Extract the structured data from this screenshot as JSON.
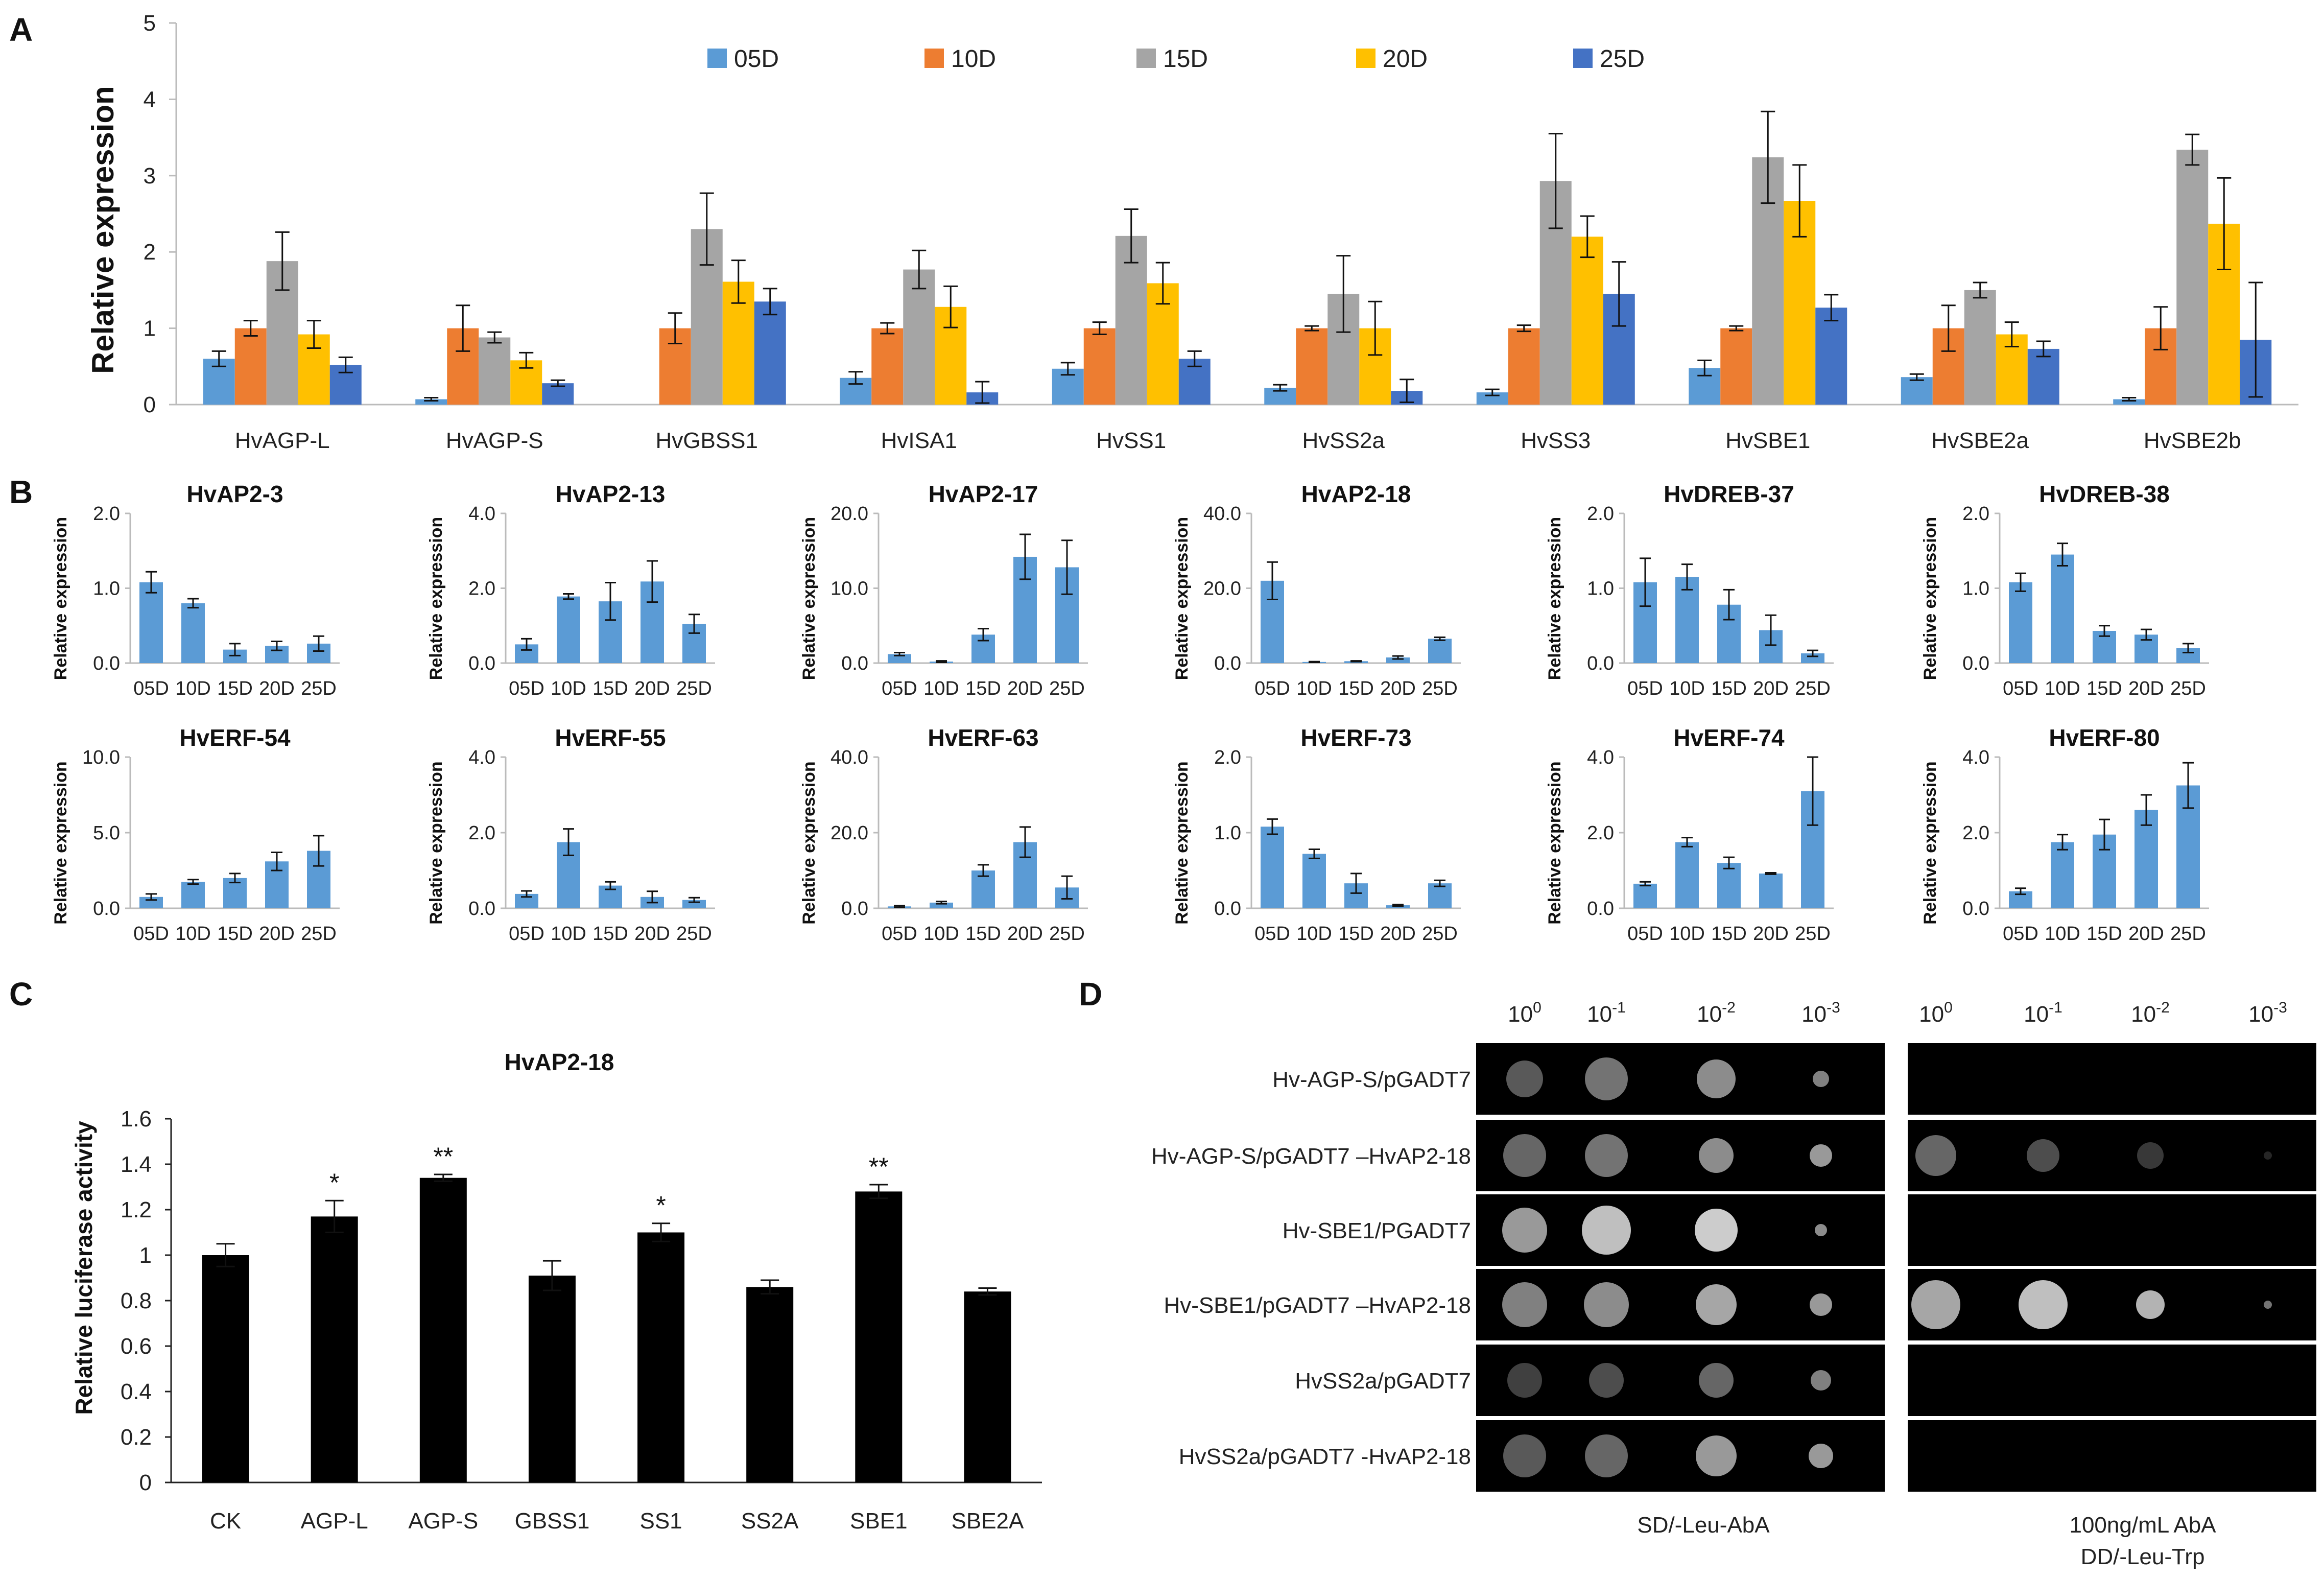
{
  "panel_letters": {
    "a": "A",
    "b": "B",
    "c": "C",
    "d": "D"
  },
  "chart_data": [
    {
      "id": "A",
      "type": "bar",
      "title": "",
      "xlabel": "",
      "ylabel": "Relative expression",
      "ylim": [
        0,
        5
      ],
      "yticks": [
        "0",
        "1",
        "2",
        "3",
        "4",
        "5"
      ],
      "legend_position": "top",
      "categories": [
        "HvAGP-L",
        "HvAGP-S",
        "HvGBSS1",
        "HvISA1",
        "HvSS1",
        "HvSS2a",
        "HvSS3",
        "HvSBE1",
        "HvSBE2a",
        "HvSBE2b"
      ],
      "series": [
        {
          "name": "05D",
          "color": "#5b9bd5",
          "values": [
            0.6,
            0.07,
            null,
            0.35,
            0.47,
            0.22,
            0.16,
            0.48,
            0.36,
            0.07
          ],
          "errors": [
            0.1,
            0.02,
            null,
            0.08,
            0.08,
            0.04,
            0.04,
            0.1,
            0.04,
            0.02
          ]
        },
        {
          "name": "10D",
          "color": "#ed7d31",
          "values": [
            1.0,
            1.0,
            1.0,
            1.0,
            1.0,
            1.0,
            1.0,
            1.0,
            1.0,
            1.0
          ],
          "errors": [
            0.1,
            0.3,
            0.2,
            0.07,
            0.08,
            0.03,
            0.04,
            0.03,
            0.3,
            0.28
          ]
        },
        {
          "name": "15D",
          "color": "#a5a5a5",
          "values": [
            1.88,
            0.88,
            2.3,
            1.77,
            2.21,
            1.45,
            2.93,
            3.24,
            1.5,
            3.34
          ],
          "errors": [
            0.38,
            0.07,
            0.47,
            0.25,
            0.35,
            0.5,
            0.62,
            0.6,
            0.1,
            0.2
          ]
        },
        {
          "name": "20D",
          "color": "#ffc000",
          "values": [
            0.92,
            0.58,
            1.61,
            1.28,
            1.59,
            1.0,
            2.2,
            2.67,
            0.92,
            2.37
          ],
          "errors": [
            0.18,
            0.1,
            0.28,
            0.27,
            0.27,
            0.35,
            0.27,
            0.47,
            0.16,
            0.6
          ]
        },
        {
          "name": "25D",
          "color": "#4472c4",
          "values": [
            0.52,
            0.28,
            1.35,
            0.16,
            0.6,
            0.18,
            1.45,
            1.27,
            0.73,
            0.85
          ],
          "errors": [
            0.1,
            0.04,
            0.17,
            0.14,
            0.1,
            0.15,
            0.42,
            0.17,
            0.1,
            0.75
          ]
        }
      ]
    },
    {
      "id": "B",
      "type": "bar",
      "ylabel": "Relative expression",
      "bar_color": "#5b9bd5",
      "categories": [
        "05D",
        "10D",
        "15D",
        "20D",
        "25D"
      ],
      "subplots": [
        {
          "title": "HvAP2-3",
          "ylim": [
            0,
            2
          ],
          "yticks": [
            "0.0",
            "1.0",
            "2.0"
          ],
          "values": [
            1.08,
            0.8,
            0.18,
            0.23,
            0.26
          ],
          "errors": [
            0.14,
            0.06,
            0.08,
            0.06,
            0.1
          ]
        },
        {
          "title": "HvAP2-13",
          "ylim": [
            0,
            4
          ],
          "yticks": [
            "0.0",
            "2.0",
            "4.0"
          ],
          "values": [
            0.5,
            1.78,
            1.65,
            2.18,
            1.05
          ],
          "errors": [
            0.15,
            0.07,
            0.5,
            0.55,
            0.25
          ]
        },
        {
          "title": "HvAP2-17",
          "ylim": [
            0,
            20
          ],
          "yticks": [
            "0.0",
            "10.0",
            "20.0"
          ],
          "values": [
            1.2,
            0.2,
            3.8,
            14.2,
            12.8
          ],
          "errors": [
            0.2,
            0.1,
            0.8,
            3.0,
            3.6
          ]
        },
        {
          "title": "HvAP2-18",
          "ylim": [
            0,
            40
          ],
          "yticks": [
            "0.0",
            "20.0",
            "40.0"
          ],
          "values": [
            22.0,
            0.3,
            0.5,
            1.5,
            6.5
          ],
          "errors": [
            5.0,
            0.1,
            0.1,
            0.4,
            0.4
          ]
        },
        {
          "title": "HvDREB-37",
          "ylim": [
            0,
            2
          ],
          "yticks": [
            "0.0",
            "1.0",
            "2.0"
          ],
          "values": [
            1.08,
            1.15,
            0.78,
            0.44,
            0.13
          ],
          "errors": [
            0.32,
            0.17,
            0.2,
            0.2,
            0.04
          ]
        },
        {
          "title": "HvDREB-38",
          "ylim": [
            0,
            2
          ],
          "yticks": [
            "0.0",
            "1.0",
            "2.0"
          ],
          "values": [
            1.08,
            1.45,
            0.43,
            0.38,
            0.2
          ],
          "errors": [
            0.12,
            0.15,
            0.07,
            0.07,
            0.06
          ]
        },
        {
          "title": "HvERF-54",
          "ylim": [
            0,
            10
          ],
          "yticks": [
            "0.0",
            "5.0",
            "10.0"
          ],
          "values": [
            0.75,
            1.75,
            2.0,
            3.1,
            3.8
          ],
          "errors": [
            0.2,
            0.15,
            0.3,
            0.6,
            1.0
          ]
        },
        {
          "title": "HvERF-55",
          "ylim": [
            0,
            4
          ],
          "yticks": [
            "0.0",
            "2.0",
            "4.0"
          ],
          "values": [
            0.38,
            1.75,
            0.6,
            0.3,
            0.22
          ],
          "errors": [
            0.08,
            0.35,
            0.1,
            0.15,
            0.06
          ]
        },
        {
          "title": "HvERF-63",
          "ylim": [
            0,
            40
          ],
          "yticks": [
            "0.0",
            "20.0",
            "40.0"
          ],
          "values": [
            0.5,
            1.5,
            10.0,
            17.5,
            5.5
          ],
          "errors": [
            0.2,
            0.3,
            1.5,
            4.0,
            3.0
          ]
        },
        {
          "title": "HvERF-73",
          "ylim": [
            0,
            2
          ],
          "yticks": [
            "0.0",
            "1.0",
            "2.0"
          ],
          "values": [
            1.08,
            0.72,
            0.33,
            0.04,
            0.33
          ],
          "errors": [
            0.1,
            0.06,
            0.13,
            0.01,
            0.04
          ]
        },
        {
          "title": "HvERF-74",
          "ylim": [
            0,
            4
          ],
          "yticks": [
            "0.0",
            "2.0",
            "4.0"
          ],
          "values": [
            0.65,
            1.75,
            1.2,
            0.92,
            3.1
          ],
          "errors": [
            0.05,
            0.12,
            0.15,
            0.02,
            0.9
          ]
        },
        {
          "title": "HvERF-80",
          "ylim": [
            0,
            4
          ],
          "yticks": [
            "0.0",
            "2.0",
            "4.0"
          ],
          "values": [
            0.45,
            1.75,
            1.95,
            2.6,
            3.25
          ],
          "errors": [
            0.08,
            0.2,
            0.4,
            0.4,
            0.6
          ]
        }
      ]
    },
    {
      "id": "C",
      "type": "bar",
      "title": "HvAP2-18",
      "xlabel": "",
      "ylabel": "Relative luciferase activity",
      "ylim": [
        0,
        1.6
      ],
      "yticks": [
        "0",
        "0.2",
        "0.4",
        "0.6",
        "0.8",
        "1",
        "1.2",
        "1.4",
        "1.6"
      ],
      "bar_color": "#000000",
      "categories": [
        "CK",
        "AGP-L",
        "AGP-S",
        "GBSS1",
        "SS1",
        "SS2A",
        "SBE1",
        "SBE2A"
      ],
      "values": [
        1.0,
        1.17,
        1.34,
        0.91,
        1.1,
        0.86,
        1.28,
        0.84
      ],
      "errors": [
        0.05,
        0.07,
        0.015,
        0.065,
        0.04,
        0.03,
        0.03,
        0.015
      ],
      "significance": [
        "",
        "*",
        "**",
        "",
        "*",
        "",
        "**",
        ""
      ]
    }
  ],
  "panel_d": {
    "dilutions_left": [
      {
        "base": "10",
        "exp": "0"
      },
      {
        "base": "10",
        "exp": "-1"
      },
      {
        "base": "10",
        "exp": "-2"
      },
      {
        "base": "10",
        "exp": "-3"
      }
    ],
    "dilutions_right": [
      {
        "base": "10",
        "exp": "0"
      },
      {
        "base": "10",
        "exp": "-1"
      },
      {
        "base": "10",
        "exp": "-2"
      },
      {
        "base": "10",
        "exp": "-3"
      }
    ],
    "rows": [
      "Hv-AGP-S/pGADT7",
      "Hv-AGP-S/pGADT7 –HvAP2-18",
      "Hv-SBE1/PGADT7",
      "Hv-SBE1/pGADT7 –HvAP2-18",
      "HvSS2a/pGADT7",
      "HvSS2a/pGADT7  -HvAP2-18"
    ],
    "medium_left": "SD/-Leu-AbA",
    "medium_right_line1": "100ng/mL AbA",
    "medium_right_line2": "DD/-Leu-Trp"
  }
}
